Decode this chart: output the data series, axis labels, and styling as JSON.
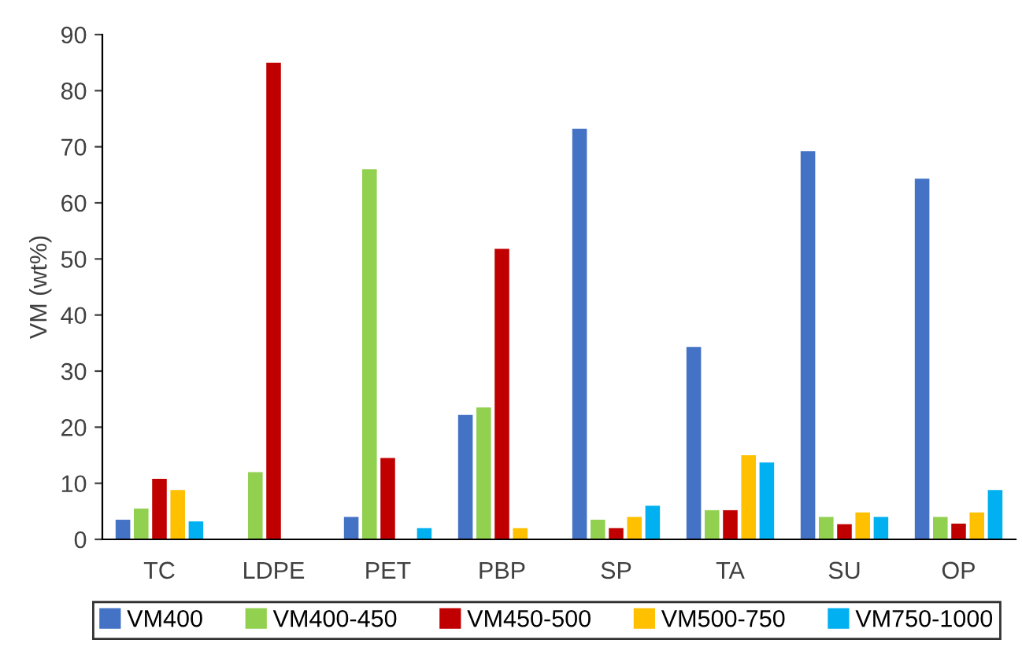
{
  "chart_data": {
    "type": "bar",
    "ylabel": "VM (wt%)",
    "categories": [
      "TC",
      "LDPE",
      "PET",
      "PBP",
      "SP",
      "TA",
      "SU",
      "OP"
    ],
    "series": [
      {
        "name": "VM400",
        "color": "#4472c4",
        "values": [
          3.5,
          null,
          4,
          22.2,
          73.2,
          34.3,
          69.2,
          64.3
        ]
      },
      {
        "name": "VM400-450",
        "color": "#92d050",
        "values": [
          5.5,
          12,
          66,
          23.5,
          3.5,
          5.2,
          4,
          4
        ]
      },
      {
        "name": "VM450-500",
        "color": "#c00000",
        "values": [
          10.8,
          85,
          14.5,
          51.8,
          2,
          5.2,
          2.7,
          2.8
        ]
      },
      {
        "name": "VM500-750",
        "color": "#ffc000",
        "values": [
          8.8,
          null,
          null,
          2,
          4,
          15,
          4.8,
          4.8
        ]
      },
      {
        "name": "VM750-1000",
        "color": "#00b0f0",
        "values": [
          3.2,
          null,
          2,
          null,
          6,
          13.7,
          4,
          8.8
        ]
      }
    ],
    "ylim": [
      0,
      90
    ],
    "yticks": [
      0,
      10,
      20,
      30,
      40,
      50,
      60,
      70,
      80,
      90
    ],
    "grid": false,
    "legend": "bottom"
  }
}
